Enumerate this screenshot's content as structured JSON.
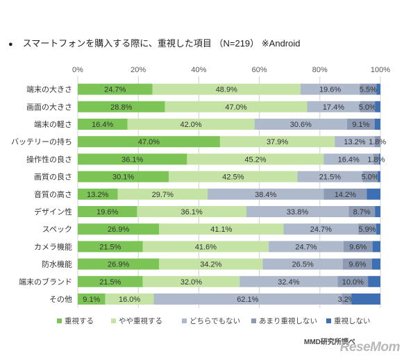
{
  "title": "スマートフォンを購入する際に、重視した項目 （N=219） ※Android",
  "bullet": "●",
  "chart_data": {
    "type": "bar",
    "orientation": "horizontal",
    "stacked": true,
    "percent_stacked": true,
    "xlim": [
      0,
      100
    ],
    "x_tick_labels": [
      "0%",
      "20%",
      "40%",
      "60%",
      "80%",
      "100%"
    ],
    "grid": true,
    "legend_position": "bottom",
    "categories": [
      "端末の大きさ",
      "画面の大きさ",
      "端末の軽さ",
      "バッテリーの持ち",
      "操作性の良さ",
      "画質の良さ",
      "音質の高さ",
      "デザイン性",
      "スペック",
      "カメラ機能",
      "防水機能",
      "端末のブランド",
      "その他"
    ],
    "series": [
      {
        "name": "重視する",
        "color": "#7cc455",
        "values": [
          24.7,
          28.8,
          16.4,
          47.0,
          36.1,
          30.1,
          13.2,
          19.6,
          26.9,
          21.5,
          26.9,
          21.5,
          9.1
        ],
        "labels": [
          "24.7%",
          "28.8%",
          "16.4%",
          "47.0%",
          "36.1%",
          "30.1%",
          "13.2%",
          "19.6%",
          "26.9%",
          "21.5%",
          "26.9%",
          "21.5%",
          "9.1%"
        ]
      },
      {
        "name": "やや重視する",
        "color": "#c5e3a4",
        "values": [
          48.9,
          47.0,
          42.0,
          37.9,
          45.2,
          42.5,
          29.7,
          36.1,
          41.1,
          41.6,
          34.2,
          32.0,
          16.0
        ],
        "labels": [
          "48.9%",
          "47.0%",
          "42.0%",
          "37.9%",
          "45.2%",
          "42.5%",
          "29.7%",
          "36.1%",
          "41.1%",
          "41.6%",
          "34.2%",
          "32.0%",
          "16.0%"
        ]
      },
      {
        "name": "どちらでもない",
        "color": "#aeb9cc",
        "values": [
          19.6,
          17.4,
          30.6,
          13.2,
          16.4,
          21.5,
          38.4,
          33.8,
          24.7,
          24.7,
          26.5,
          32.4,
          62.1
        ],
        "labels": [
          "19.6%",
          "17.4%",
          "30.6%",
          "13.2%",
          "16.4%",
          "21.5%",
          "38.4%",
          "33.8%",
          "24.7%",
          "24.7%",
          "26.5%",
          "32.4%",
          "62.1%"
        ]
      },
      {
        "name": "あまり重視しない",
        "color": "#8c9ab4",
        "values": [
          5.5,
          5.0,
          9.1,
          1.8,
          1.8,
          5.0,
          14.2,
          8.7,
          5.9,
          9.6,
          9.6,
          10.0,
          3.2
        ],
        "labels": [
          "5.5%",
          "5.0%",
          "9.1%",
          "1.8%",
          "1.8%",
          "5.0%",
          "14.2%",
          "8.7%",
          "5.9%",
          "9.6%",
          "9.6%",
          "10.0%",
          "3.2%"
        ]
      },
      {
        "name": "重視しない",
        "color": "#3e6fb3",
        "values": [
          1.3,
          1.8,
          1.9,
          0.1,
          0.5,
          0.9,
          4.5,
          1.8,
          1.4,
          2.6,
          2.8,
          4.1,
          9.6
        ],
        "labels": [
          "",
          "",
          "",
          "",
          "",
          "",
          "",
          "",
          "",
          "",
          "",
          "",
          ""
        ]
      }
    ]
  },
  "source": "MMD研究所調べ",
  "watermark": "ReseMom"
}
